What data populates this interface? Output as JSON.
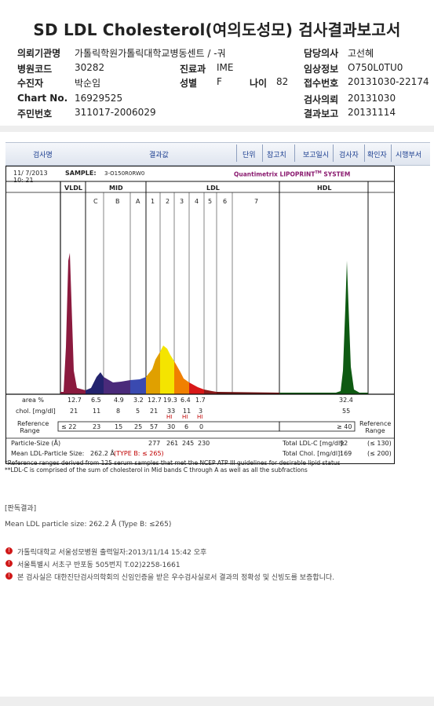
{
  "title": "SD LDL Cholesterol(여의도성모) 검사결과보고서",
  "info": {
    "institution_label": "의뢰기관명",
    "institution": "가톨릭학원가톨릭대학교병동센트 / -궈",
    "doctor_label": "담당의사",
    "doctor": "고선혜",
    "hospital_code_label": "병원코드",
    "hospital_code": "30282",
    "dept_label": "진료과",
    "dept": "IME",
    "clinical_label": "임상정보",
    "clinical": "O750L0TU0",
    "patient_label": "수진자",
    "patient": "박순임",
    "sex_label": "성별",
    "sex": "F",
    "age_label": "나이",
    "age": "82",
    "receipt_label": "접수번호",
    "receipt": "20131030-22174",
    "chart_label": "Chart No.",
    "chart": "16929525",
    "request_label": "검사의뢰",
    "request": "20131030",
    "id_label": "주민번호",
    "id": "311017-2006029",
    "report_label": "결과보고",
    "report": "20131114"
  },
  "table_header": {
    "test_name": "검사명",
    "result": "결과값",
    "unit": "단위",
    "reference": "참고치",
    "report_date": "보고일시",
    "tester": "검사자",
    "confirmer": "확인자",
    "exam_dept": "시행부서"
  },
  "report": {
    "date": "11/ 7/2013",
    "time": "10: 21",
    "sample_label": "SAMPLE:",
    "sample": "3-O150R0RW0",
    "brand": "Quantimetrix LIPOPRINT",
    "brand_tm": "TM",
    "brand_system": " SYSTEM",
    "sections": [
      "VLDL",
      "MID",
      "LDL",
      "HDL"
    ],
    "mid_bands": [
      "C",
      "B",
      "A"
    ],
    "ldl_bands": [
      "1",
      "2",
      "3",
      "4",
      "5",
      "6",
      "7"
    ],
    "area_label": "area %",
    "area_values": [
      "12.7",
      "6.5",
      "4.9",
      "3.2",
      "12.7",
      "19.3",
      "6.4",
      "1.7",
      "32.4"
    ],
    "chol_label": "chol. [mg/dl]",
    "chol_values": [
      "21",
      "11",
      "8",
      "5",
      "21",
      "33",
      "11",
      "3",
      "55"
    ],
    "hi_flags": [
      "HI",
      "HI",
      "HI"
    ],
    "ref_label": "Reference Range",
    "ref_values": [
      "≤ 22",
      "23",
      "15",
      "25",
      "57",
      "30",
      "6",
      "0",
      "≥ 40"
    ],
    "particle_label": "Particle-Size (Å)",
    "particle_values": [
      "277",
      "261",
      "245",
      "230"
    ],
    "mean_label": "Mean LDL-Particle Size:",
    "mean_value": "262.2 Å",
    "type_text": "(TYPE B: ≤ 265)",
    "total_ldl_label": "Total LDL-C [mg/dl]:",
    "total_ldl": "92",
    "total_ldl_ref": "(≤ 130)",
    "total_chol_label": "Total Chol. [mg/dl]:",
    "total_chol": "169",
    "total_chol_ref": "(≤ 200)",
    "foot1": "*Reference ranges derived from 125 serum samples that met the NCEP ATP III guidelines for desirable lipid status",
    "foot2": "**LDL-C is comprised of the sum of cholesterol in Mid bands C through A as well as all the subfractions"
  },
  "notes": {
    "judge": "[판독결과]",
    "mean": "Mean LDL particle size: 262.2 Å (Type B: ≤265)",
    "line1": "가톨릭대학교 서울성모병원      출력일자:2013/11/14 15:42 오후",
    "line2": "서울특별시 서초구 반포동 505번지 T.02)2258-1661",
    "line3": "본 검사실은 대한진단검사의학회의 신임인증을 받은 우수검사실로서 결과의 정확성 및 신빙도를 보증합니다."
  }
}
